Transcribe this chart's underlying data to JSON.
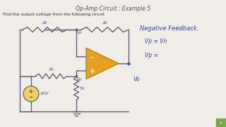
{
  "title": "Op-Amp Circuit : Example 5",
  "subtitle": "Find the output voltage from the following circuit",
  "bg_color": "#f0ede8",
  "wire_color": "#555566",
  "text_color": "#3344aa",
  "opamp_color": "#e8a020",
  "opamp_edge": "#aa7700",
  "note1": "Negative Feedback.",
  "note2": "Vp = Vn",
  "note3": "Vp =",
  "lbl_2k_top": "2k",
  "lbl_2k_in": "2k",
  "lbl_3k": "3k",
  "lbl_5k": "5k",
  "lbl_vo": "Vo",
  "lbl_10v": "10V",
  "lbl_vn": "Vn",
  "lbl_vp": "Vp",
  "lbl_minus": "-",
  "lbl_plus": "+"
}
